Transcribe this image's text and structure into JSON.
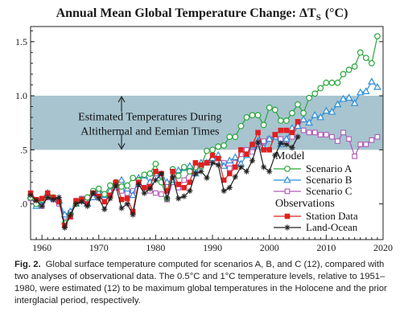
{
  "chart_data": {
    "type": "line",
    "title": "Annual Mean Global Temperature Change: ΔT",
    "title_subscript": "S",
    "title_unit": "(°C)",
    "xlim": [
      1958,
      2020
    ],
    "ylim": [
      -0.33,
      1.64
    ],
    "x_ticks": [
      1960,
      1970,
      1980,
      1990,
      2000,
      2010,
      2020
    ],
    "y_ticks": [
      0,
      0.5,
      1.0,
      1.5
    ],
    "y_tick_labels": [
      ".0",
      ".5",
      "1.0",
      "1.5"
    ],
    "grid": false,
    "band": {
      "ymin": 0.5,
      "ymax": 1.0,
      "label_lines": [
        "Estimated Temperatures During",
        "Altithermal and Eemian Times"
      ],
      "color": "#a7c4cf"
    },
    "legend_placement": "bottom-right",
    "legend_group_headers": [
      "Model",
      "Observations"
    ],
    "series": [
      {
        "name": "Scenario A",
        "group": "Model",
        "color": "#2aa63a",
        "marker": "circle",
        "x": [
          1958,
          1959,
          1960,
          1961,
          1962,
          1963,
          1964,
          1965,
          1966,
          1967,
          1968,
          1969,
          1970,
          1971,
          1972,
          1973,
          1974,
          1975,
          1976,
          1977,
          1978,
          1979,
          1980,
          1981,
          1982,
          1983,
          1984,
          1985,
          1986,
          1987,
          1988,
          1989,
          1990,
          1991,
          1992,
          1993,
          1994,
          1995,
          1996,
          1997,
          1998,
          1999,
          2000,
          2001,
          2002,
          2003,
          2004,
          2005,
          2006,
          2007,
          2008,
          2009,
          2010,
          2011,
          2012,
          2013,
          2014,
          2015,
          2016,
          2017,
          2018,
          2019
        ],
        "y": [
          0.06,
          0.0,
          0.04,
          0.08,
          0.06,
          0.02,
          -0.18,
          -0.1,
          0.0,
          0.04,
          0.06,
          0.12,
          0.14,
          0.09,
          0.17,
          0.2,
          0.16,
          0.17,
          0.24,
          0.22,
          0.27,
          0.28,
          0.37,
          0.2,
          0.05,
          0.32,
          0.26,
          0.34,
          0.3,
          0.34,
          0.35,
          0.49,
          0.5,
          0.53,
          0.54,
          0.62,
          0.62,
          0.72,
          0.8,
          0.82,
          0.82,
          0.73,
          0.89,
          0.87,
          0.77,
          0.77,
          0.84,
          0.92,
          0.84,
          0.98,
          1.02,
          1.07,
          1.12,
          1.12,
          1.12,
          1.2,
          1.24,
          1.27,
          1.4,
          1.35,
          1.3,
          1.55
        ]
      },
      {
        "name": "Scenario B",
        "group": "Model",
        "color": "#2f8fd8",
        "marker": "triangle",
        "x": [
          1958,
          1959,
          1960,
          1961,
          1962,
          1963,
          1964,
          1965,
          1966,
          1967,
          1968,
          1969,
          1970,
          1971,
          1972,
          1973,
          1974,
          1975,
          1976,
          1977,
          1978,
          1979,
          1980,
          1981,
          1982,
          1983,
          1984,
          1985,
          1986,
          1987,
          1988,
          1989,
          1990,
          1991,
          1992,
          1993,
          1994,
          1995,
          1996,
          1997,
          1998,
          1999,
          2000,
          2001,
          2002,
          2003,
          2004,
          2005,
          2006,
          2007,
          2008,
          2009,
          2010,
          2011,
          2012,
          2013,
          2014,
          2015,
          2016,
          2017,
          2018,
          2019
        ],
        "y": [
          0.07,
          -0.02,
          0.03,
          0.1,
          0.05,
          0.03,
          -0.1,
          -0.07,
          0.0,
          0.03,
          0.0,
          0.06,
          0.1,
          0.08,
          0.12,
          0.19,
          0.22,
          0.14,
          0.08,
          0.24,
          0.26,
          0.2,
          0.28,
          0.26,
          0.2,
          0.22,
          0.31,
          0.33,
          0.35,
          0.28,
          0.38,
          0.38,
          0.42,
          0.45,
          0.35,
          0.4,
          0.43,
          0.37,
          0.45,
          0.54,
          0.58,
          0.52,
          0.6,
          0.62,
          0.55,
          0.6,
          0.7,
          0.72,
          0.78,
          0.75,
          0.82,
          0.8,
          0.86,
          0.85,
          0.92,
          0.97,
          0.98,
          0.93,
          1.03,
          1.04,
          1.13,
          1.08
        ]
      },
      {
        "name": "Scenario C",
        "group": "Model",
        "color": "#b05ab8",
        "marker": "square-open",
        "x": [
          1958,
          1959,
          1960,
          1961,
          1962,
          1963,
          1964,
          1965,
          1966,
          1967,
          1968,
          1969,
          1970,
          1971,
          1972,
          1973,
          1974,
          1975,
          1976,
          1977,
          1978,
          1979,
          1980,
          1981,
          1982,
          1983,
          1984,
          1985,
          1986,
          1987,
          1988,
          1989,
          1990,
          1991,
          1992,
          1993,
          1994,
          1995,
          1996,
          1997,
          1998,
          1999,
          2000,
          2001,
          2002,
          2003,
          2004,
          2005,
          2006,
          2007,
          2008,
          2009,
          2010,
          2011,
          2012,
          2013,
          2014,
          2015,
          2016,
          2017,
          2018,
          2019
        ],
        "y": [
          0.05,
          0.0,
          -0.02,
          0.06,
          0.04,
          0.0,
          -0.12,
          -0.08,
          0.02,
          0.05,
          0.02,
          0.08,
          0.12,
          0.06,
          0.1,
          0.15,
          0.12,
          0.1,
          0.12,
          0.18,
          0.15,
          0.12,
          0.1,
          0.09,
          0.04,
          0.2,
          0.15,
          0.22,
          0.3,
          0.32,
          0.35,
          0.38,
          0.4,
          0.42,
          0.38,
          0.33,
          0.38,
          0.46,
          0.5,
          0.48,
          0.55,
          0.58,
          0.6,
          0.64,
          0.6,
          0.58,
          0.62,
          0.72,
          0.68,
          0.66,
          0.66,
          0.64,
          0.64,
          0.62,
          0.58,
          0.66,
          0.6,
          0.44,
          0.55,
          0.55,
          0.59,
          0.62
        ]
      },
      {
        "name": "Station Data",
        "group": "Observations",
        "color": "#e02020",
        "marker": "square-filled",
        "x": [
          1958,
          1959,
          1960,
          1961,
          1962,
          1963,
          1964,
          1965,
          1966,
          1967,
          1968,
          1969,
          1970,
          1971,
          1972,
          1973,
          1974,
          1975,
          1976,
          1977,
          1978,
          1979,
          1980,
          1981,
          1982,
          1983,
          1984,
          1985,
          1986,
          1987,
          1988,
          1989,
          1990,
          1991,
          1992,
          1993,
          1994,
          1995,
          1996,
          1997,
          1998,
          1999,
          2000,
          2001,
          2002,
          2003,
          2004,
          2005
        ],
        "y": [
          0.1,
          0.04,
          0.05,
          0.1,
          0.06,
          0.02,
          -0.2,
          -0.12,
          0.03,
          0.04,
          0.0,
          0.1,
          0.07,
          0.02,
          0.08,
          0.2,
          0.04,
          0.05,
          -0.07,
          0.2,
          0.15,
          0.16,
          0.3,
          0.28,
          0.12,
          0.3,
          0.18,
          0.15,
          0.2,
          0.38,
          0.36,
          0.38,
          0.45,
          0.42,
          0.22,
          0.28,
          0.34,
          0.5,
          0.46,
          0.55,
          0.66,
          0.5,
          0.5,
          0.64,
          0.68,
          0.68,
          0.66,
          0.76
        ]
      },
      {
        "name": "Land-Ocean",
        "group": "Observations",
        "color": "#222222",
        "marker": "star",
        "x": [
          1958,
          1959,
          1960,
          1961,
          1962,
          1963,
          1964,
          1965,
          1966,
          1967,
          1968,
          1969,
          1970,
          1971,
          1972,
          1973,
          1974,
          1975,
          1976,
          1977,
          1978,
          1979,
          1980,
          1981,
          1982,
          1983,
          1984,
          1985,
          1986,
          1987,
          1988,
          1989,
          1990,
          1991,
          1992,
          1993,
          1994,
          1995,
          1996,
          1997,
          1998,
          1999,
          2000,
          2001,
          2002,
          2003,
          2004,
          2005
        ],
        "y": [
          0.08,
          0.03,
          -0.02,
          0.06,
          0.04,
          0.06,
          -0.22,
          -0.1,
          0.0,
          0.02,
          -0.02,
          0.1,
          0.05,
          -0.05,
          0.05,
          0.17,
          -0.04,
          0.0,
          -0.1,
          0.18,
          0.1,
          0.14,
          0.22,
          0.28,
          0.05,
          0.25,
          0.05,
          0.07,
          0.12,
          0.28,
          0.3,
          0.24,
          0.38,
          0.36,
          0.12,
          0.15,
          0.25,
          0.34,
          0.3,
          0.4,
          0.57,
          0.34,
          0.3,
          0.45,
          0.56,
          0.55,
          0.52,
          0.62
        ]
      }
    ]
  },
  "caption": {
    "label": "Fig. 2.",
    "text": "Global surface temperature computed for scenarios A, B, and C (12), compared with two analyses of observational data. The 0.5°C and 1°C temperature levels, relative to 1951–1980, were estimated (12) to be maximum global temperatures in the Holocene and the prior interglacial period, respectively."
  }
}
